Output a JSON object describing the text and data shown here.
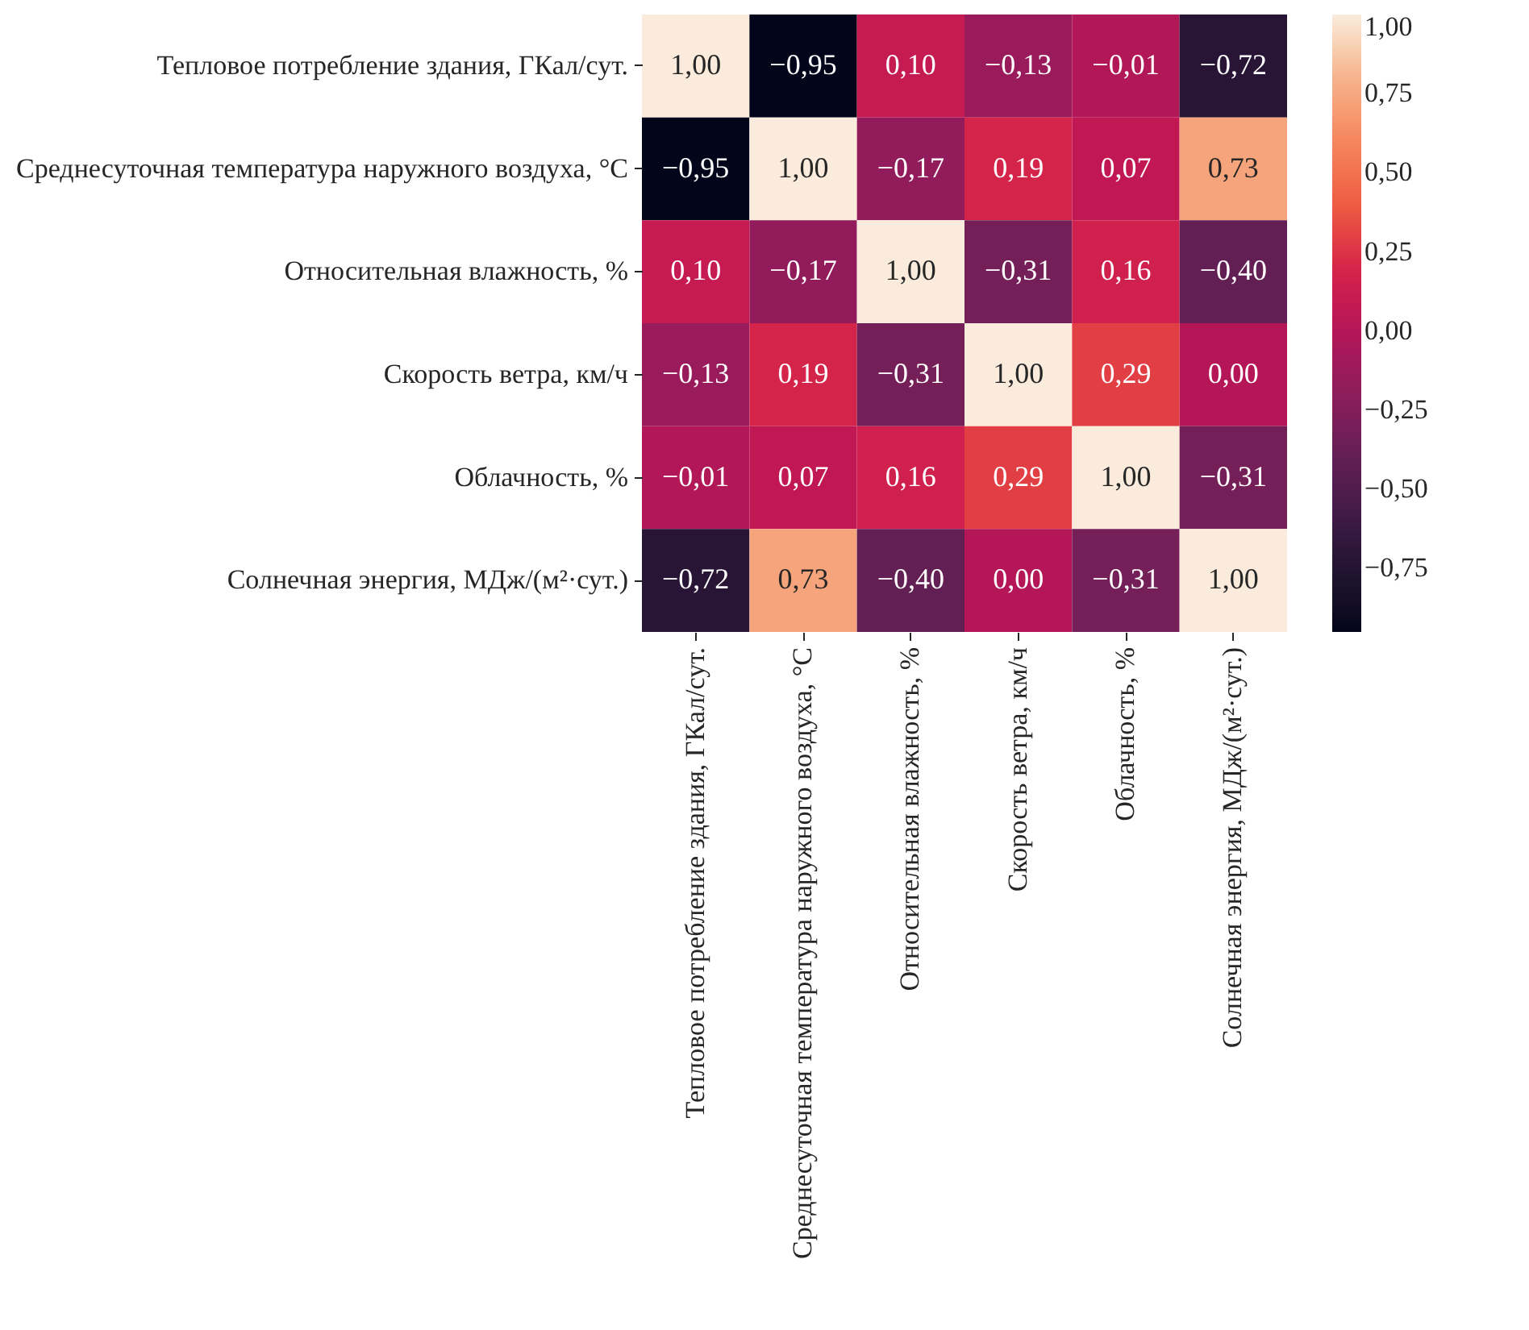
{
  "chart_data": {
    "type": "heatmap",
    "categories": [
      "Тепловое потребление здания, ГКал/сут.",
      "Среднесуточная температура наружного воздуха, °С",
      "Относительная влажность, %",
      "Скорость ветра, км/ч",
      "Облачность, %",
      "Солнечная энергия, МДж/(м²·сут.)"
    ],
    "y_categories": [
      "Тепловое потребление здания, ГКал/сут.",
      "Среднесуточная температура наружного воздуха, °С",
      "Относительная влажность, %",
      "Скорость ветра, км/ч",
      "Облачность, %",
      "Солнечная энергия, МДж/(м²·сут.)"
    ],
    "cells": [
      [
        1.0,
        -0.95,
        0.1,
        -0.13,
        -0.01,
        -0.72
      ],
      [
        -0.95,
        1.0,
        -0.17,
        0.19,
        0.07,
        0.73
      ],
      [
        0.1,
        -0.17,
        1.0,
        -0.31,
        0.16,
        -0.4
      ],
      [
        -0.13,
        0.19,
        -0.31,
        1.0,
        0.29,
        0.0
      ],
      [
        -0.01,
        0.07,
        0.16,
        0.29,
        1.0,
        -0.31
      ],
      [
        -0.72,
        0.73,
        -0.4,
        0.0,
        -0.31,
        1.0
      ]
    ],
    "cell_labels": [
      [
        "1,00",
        "−0,95",
        "0,10",
        "−0,13",
        "−0,01",
        "−0,72"
      ],
      [
        "−0,95",
        "1,00",
        "−0,17",
        "0,19",
        "0,07",
        "0,73"
      ],
      [
        "0,10",
        "−0,17",
        "1,00",
        "−0,31",
        "0,16",
        "−0,40"
      ],
      [
        "−0,13",
        "0,19",
        "−0,31",
        "1,00",
        "0,29",
        "0,00"
      ],
      [
        "−0,01",
        "0,07",
        "0,16",
        "0,29",
        "1,00",
        "−0,31"
      ],
      [
        "−0,72",
        "0,73",
        "−0,40",
        "0,00",
        "−0,31",
        "1,00"
      ]
    ],
    "clim": [
      -0.95,
      1.0
    ],
    "cticks": [
      {
        "value": -0.75,
        "label": "−0,75"
      },
      {
        "value": -0.5,
        "label": "−0,50"
      },
      {
        "value": -0.25,
        "label": "−0,25"
      },
      {
        "value": 0,
        "label": "0,00"
      },
      {
        "value": 0.25,
        "label": "0,25"
      },
      {
        "value": 0.5,
        "label": "0,50"
      },
      {
        "value": 0.75,
        "label": "0,75"
      },
      {
        "value": 1,
        "label": "1,00"
      }
    ]
  }
}
